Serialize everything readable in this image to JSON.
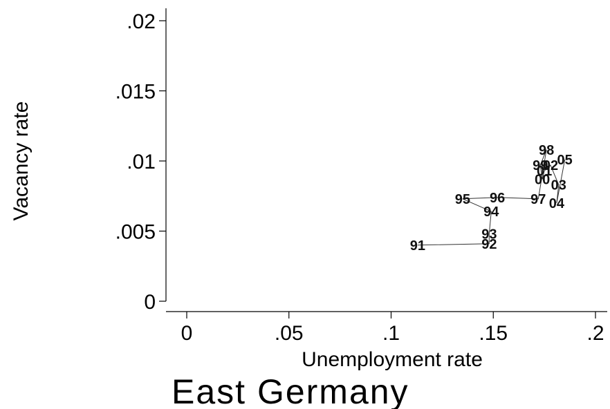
{
  "chart_data": {
    "type": "line",
    "title": "East Germany",
    "xlabel": "Unemployment rate",
    "ylabel": "Vacancy rate",
    "xlim": [
      0,
      0.2
    ],
    "ylim": [
      0,
      0.02
    ],
    "x_ticks": [
      {
        "value": 0,
        "label": "0"
      },
      {
        "value": 0.05,
        "label": ".05"
      },
      {
        "value": 0.1,
        "label": ".1"
      },
      {
        "value": 0.15,
        "label": ".15"
      },
      {
        "value": 0.2,
        "label": ".2"
      }
    ],
    "y_ticks": [
      {
        "value": 0,
        "label": "0"
      },
      {
        "value": 0.005,
        "label": ".005"
      },
      {
        "value": 0.01,
        "label": ".01"
      },
      {
        "value": 0.015,
        "label": ".015"
      },
      {
        "value": 0.02,
        "label": ".02"
      }
    ],
    "grid": false,
    "points": [
      {
        "label": "91",
        "x": 0.113,
        "y": 0.004
      },
      {
        "label": "92",
        "x": 0.148,
        "y": 0.0041
      },
      {
        "label": "93",
        "x": 0.148,
        "y": 0.0048
      },
      {
        "label": "94",
        "x": 0.149,
        "y": 0.0064
      },
      {
        "label": "95",
        "x": 0.135,
        "y": 0.0073
      },
      {
        "label": "96",
        "x": 0.152,
        "y": 0.0074
      },
      {
        "label": "97",
        "x": 0.172,
        "y": 0.0073
      },
      {
        "label": "98",
        "x": 0.176,
        "y": 0.0108
      },
      {
        "label": "99",
        "x": 0.173,
        "y": 0.0097
      },
      {
        "label": "00",
        "x": 0.174,
        "y": 0.0087
      },
      {
        "label": "01",
        "x": 0.175,
        "y": 0.0093
      },
      {
        "label": "02",
        "x": 0.178,
        "y": 0.0097
      },
      {
        "label": "03",
        "x": 0.182,
        "y": 0.0083
      },
      {
        "label": "04",
        "x": 0.181,
        "y": 0.007
      },
      {
        "label": "05",
        "x": 0.185,
        "y": 0.0101
      }
    ]
  }
}
